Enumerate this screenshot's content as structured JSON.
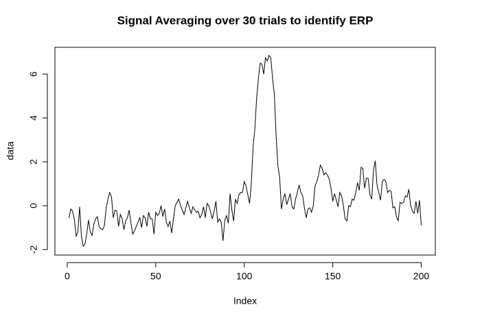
{
  "chart_data": {
    "type": "line",
    "title": "Signal Averaging over 30  trials to identify ERP",
    "x_label": "Index",
    "y_label": "data",
    "color": "#000000",
    "x": [
      1,
      2,
      3,
      4,
      5,
      6,
      7,
      8,
      9,
      10,
      11,
      12,
      13,
      14,
      15,
      16,
      17,
      18,
      19,
      20,
      21,
      22,
      23,
      24,
      25,
      26,
      27,
      28,
      29,
      30,
      31,
      32,
      33,
      34,
      35,
      36,
      37,
      38,
      39,
      40,
      41,
      42,
      43,
      44,
      45,
      46,
      47,
      48,
      49,
      50,
      51,
      52,
      53,
      54,
      55,
      56,
      57,
      58,
      59,
      60,
      61,
      62,
      63,
      64,
      65,
      66,
      67,
      68,
      69,
      70,
      71,
      72,
      73,
      74,
      75,
      76,
      77,
      78,
      79,
      80,
      81,
      82,
      83,
      84,
      85,
      86,
      87,
      88,
      89,
      90,
      91,
      92,
      93,
      94,
      95,
      96,
      97,
      98,
      99,
      100,
      101,
      102,
      103,
      104,
      105,
      106,
      107,
      108,
      109,
      110,
      111,
      112,
      113,
      114,
      115,
      116,
      117,
      118,
      119,
      120,
      121,
      122,
      123,
      124,
      125,
      126,
      127,
      128,
      129,
      130,
      131,
      132,
      133,
      134,
      135,
      136,
      137,
      138,
      139,
      140,
      141,
      142,
      143,
      144,
      145,
      146,
      147,
      148,
      149,
      150,
      151,
      152,
      153,
      154,
      155,
      156,
      157,
      158,
      159,
      160,
      161,
      162,
      163,
      164,
      165,
      166,
      167,
      168,
      169,
      170,
      171,
      172,
      173,
      174,
      175,
      176,
      177,
      178,
      179,
      180,
      181,
      182,
      183,
      184,
      185,
      186,
      187,
      188,
      189,
      190,
      191,
      192,
      193,
      194,
      195,
      196,
      197,
      198,
      199,
      200
    ],
    "values": [
      -0.55,
      -0.15,
      -0.25,
      -0.6,
      -1.4,
      -1.2,
      -0.05,
      -1.4,
      -1.85,
      -1.75,
      -1.3,
      -0.65,
      -1.2,
      -1.35,
      -0.85,
      -0.6,
      -0.5,
      -0.95,
      -1.05,
      -1.1,
      -0.9,
      -0.1,
      0.3,
      0.6,
      0.4,
      -0.55,
      -0.2,
      -0.25,
      -0.95,
      -0.4,
      -0.6,
      -1.1,
      -0.7,
      -0.55,
      -0.2,
      -0.8,
      -1.3,
      -1.15,
      -0.95,
      -0.75,
      -0.55,
      -1.0,
      -0.45,
      -0.55,
      -0.95,
      -0.3,
      -0.6,
      -0.6,
      -1.3,
      -0.3,
      -0.45,
      -0.35,
      0.0,
      -0.5,
      -0.15,
      -0.75,
      -0.95,
      -0.7,
      -1.25,
      -0.6,
      0.0,
      0.15,
      0.3,
      0.0,
      -0.2,
      -0.4,
      -0.1,
      0.2,
      -0.1,
      -0.35,
      -0.05,
      -0.2,
      -0.3,
      -0.25,
      -0.55,
      -0.4,
      -0.05,
      -0.55,
      0.1,
      0.0,
      -0.3,
      -0.6,
      -0.25,
      0.2,
      -0.75,
      -0.6,
      -0.75,
      -1.6,
      -0.65,
      -0.45,
      -0.8,
      0.55,
      -0.2,
      -0.7,
      0.3,
      0.1,
      0.5,
      0.6,
      0.6,
      1.1,
      0.9,
      0.5,
      0.1,
      1.0,
      2.7,
      3.5,
      4.9,
      5.8,
      6.5,
      6.45,
      6.0,
      6.75,
      6.6,
      6.85,
      6.75,
      5.8,
      5.1,
      3.2,
      1.8,
      1.3,
      -0.15,
      0.3,
      0.55,
      0.05,
      0.3,
      0.55,
      -0.05,
      -0.15,
      0.3,
      0.6,
      0.95,
      0.6,
      0.45,
      -0.1,
      -0.55,
      -0.15,
      -0.1,
      -0.3,
      0.0,
      0.9,
      1.1,
      1.4,
      1.85,
      1.7,
      1.4,
      1.5,
      1.4,
      1.2,
      0.8,
      0.2,
      0.55,
      0.25,
      -0.05,
      0.6,
      0.45,
      0.0,
      -0.6,
      -0.7,
      0.0,
      -0.05,
      0.3,
      0.25,
      0.6,
      1.05,
      0.7,
      1.75,
      1.7,
      0.8,
      1.25,
      1.25,
      0.5,
      0.3,
      1.6,
      2.05,
      0.95,
      0.6,
      0.25,
      1.1,
      1.2,
      1.1,
      0.6,
      0.7,
      0.65,
      -0.1,
      -0.05,
      -0.5,
      -0.7,
      0.15,
      0.1,
      0.15,
      0.45,
      0.4,
      0.75,
      0.0,
      -0.25,
      -0.35,
      0.2,
      -0.35,
      0.25,
      -0.9
    ],
    "xlim": [
      -6.96,
      207.96
    ],
    "ylim": [
      -2.25,
      7.22
    ],
    "xticks": [
      0,
      50,
      100,
      150,
      200
    ],
    "yticks": [
      -2,
      0,
      2,
      4,
      6
    ],
    "grid": false
  }
}
